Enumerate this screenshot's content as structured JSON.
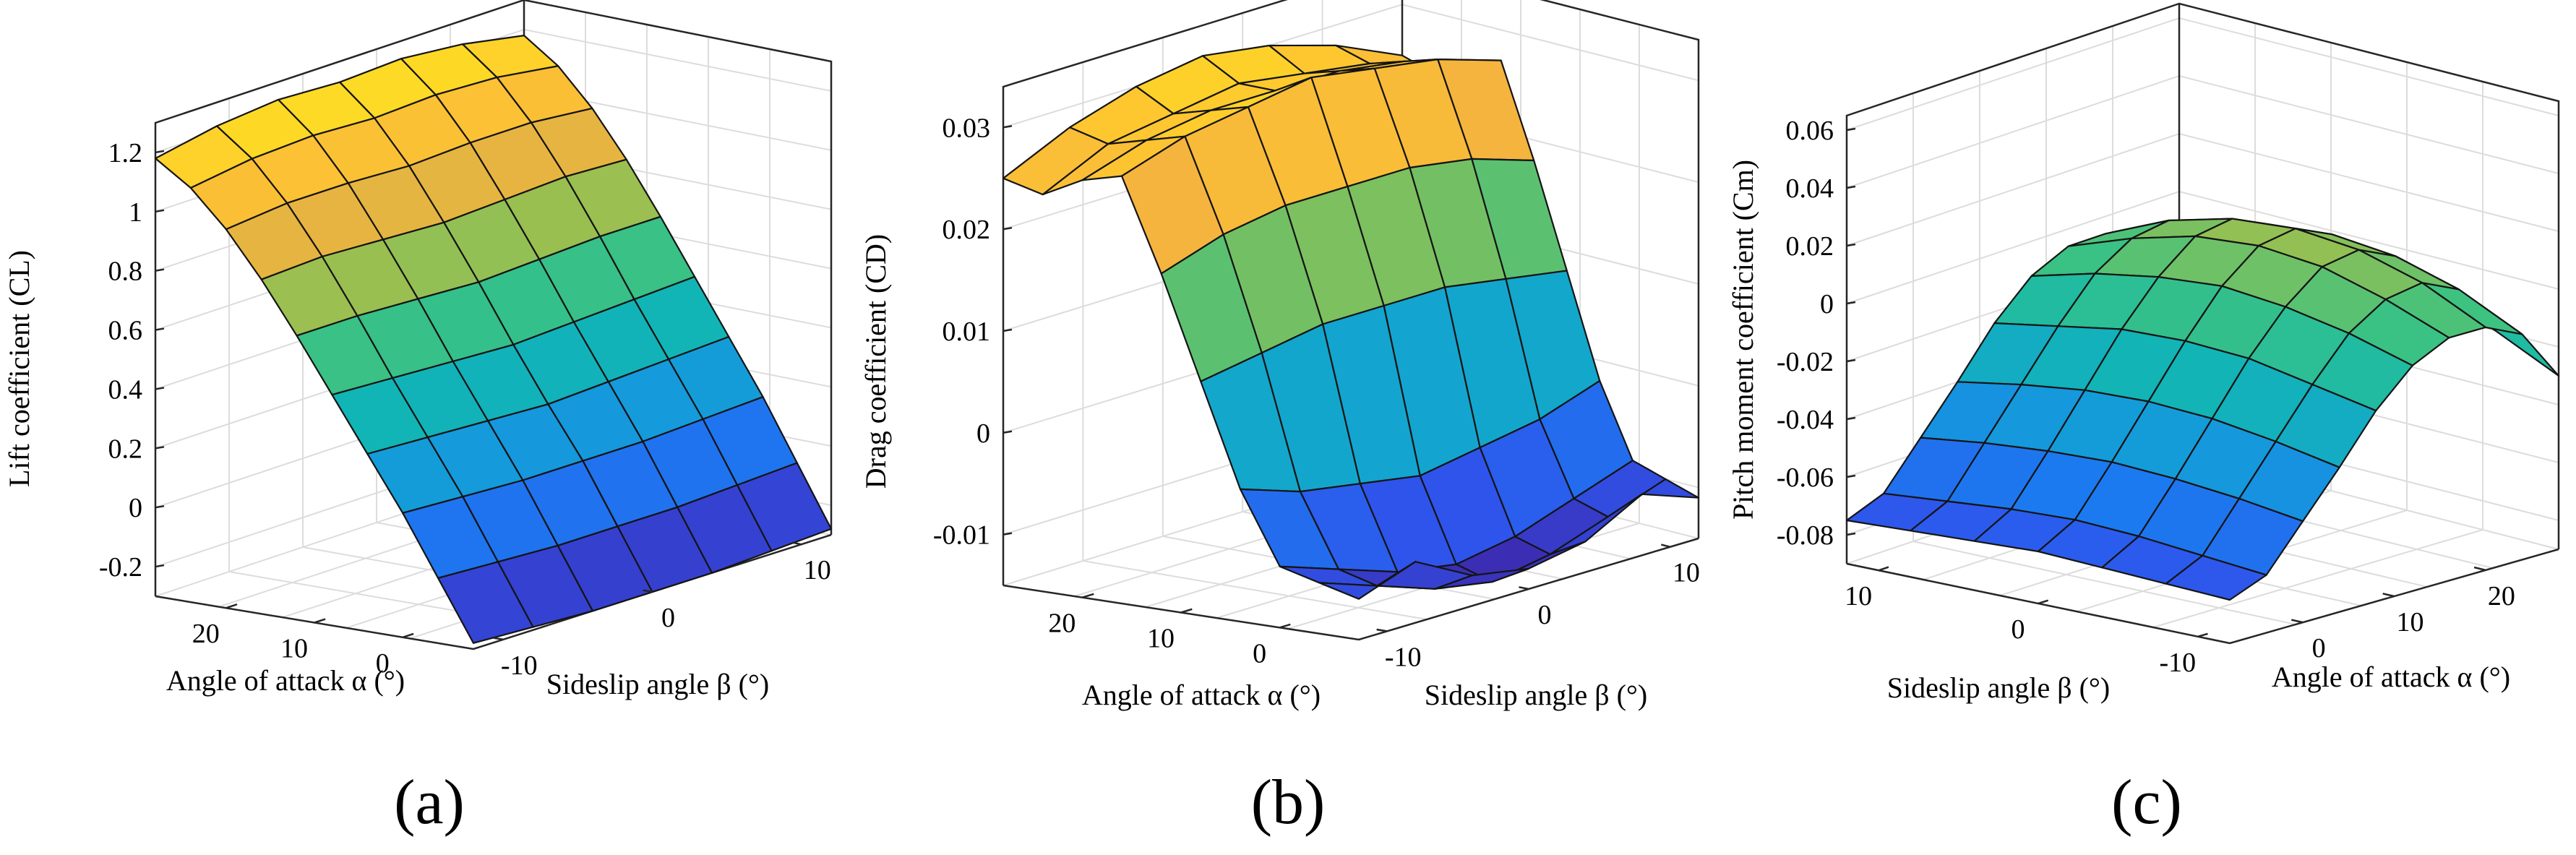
{
  "colors": {
    "colormap": [
      "#3e26a8",
      "#2f54ec",
      "#1a7ff0",
      "#13a1d5",
      "#12b8b0",
      "#3ec280",
      "#a6bf4a",
      "#f4b23f",
      "#ffc82f",
      "#f9fb15"
    ],
    "grid": "#dcdcdc",
    "axis": "#262626",
    "edge": "#141414"
  },
  "chart_data": [
    {
      "type": "surface",
      "panel": "(a)",
      "title": "",
      "zlabel": "Lift coefficient (CL)",
      "xlabel": "Angle of attack α (°)",
      "ylabel": "Sideslip angle β (°)",
      "alpha": [
        -8,
        -4,
        0,
        4,
        8,
        12,
        16,
        20,
        24,
        28
      ],
      "beta": [
        -12,
        -8,
        -4,
        0,
        4,
        8,
        12
      ],
      "alpha_ticks": [
        20,
        10,
        0
      ],
      "beta_ticks": [
        -10,
        0,
        10
      ],
      "z_ticks": [
        -0.2,
        0,
        0.2,
        0.4,
        0.6,
        0.8,
        1,
        1.2
      ],
      "z_tick_labels": [
        "-0.2",
        "0",
        "0.2",
        "0.4",
        "0.6",
        "0.8",
        "1",
        "1.2"
      ],
      "zlim": [
        -0.3,
        1.3
      ],
      "values": [
        [
          -0.28,
          -0.29,
          -0.3,
          -0.3,
          -0.3,
          -0.29,
          -0.28
        ],
        [
          -0.08,
          -0.09,
          -0.1,
          -0.1,
          -0.1,
          -0.09,
          -0.08
        ],
        [
          0.12,
          0.11,
          0.1,
          0.1,
          0.1,
          0.11,
          0.12
        ],
        [
          0.3,
          0.29,
          0.28,
          0.27,
          0.28,
          0.29,
          0.3
        ],
        [
          0.48,
          0.47,
          0.46,
          0.45,
          0.46,
          0.47,
          0.48
        ],
        [
          0.66,
          0.66,
          0.65,
          0.64,
          0.65,
          0.66,
          0.66
        ],
        [
          0.83,
          0.84,
          0.83,
          0.82,
          0.83,
          0.84,
          0.83
        ],
        [
          0.98,
          1.0,
          1.0,
          0.99,
          1.0,
          1.0,
          0.98
        ],
        [
          1.1,
          1.13,
          1.14,
          1.13,
          1.14,
          1.13,
          1.1
        ],
        [
          1.18,
          1.22,
          1.24,
          1.23,
          1.24,
          1.22,
          1.18
        ]
      ]
    },
    {
      "type": "surface",
      "panel": "(b)",
      "title": "",
      "zlabel": "Drag coefficient (CD)",
      "xlabel": "Angle of attack α (°)",
      "ylabel": "Sideslip angle β (°)",
      "alpha": [
        -8,
        -4,
        0,
        4,
        8,
        12,
        16,
        20,
        24,
        28
      ],
      "beta": [
        -12,
        -8,
        -4,
        0,
        4,
        8,
        12
      ],
      "alpha_ticks": [
        20,
        10,
        0
      ],
      "beta_ticks": [
        -10,
        0,
        10
      ],
      "z_ticks": [
        -0.01,
        0,
        0.01,
        0.02,
        0.03
      ],
      "z_tick_labels": [
        "-0.01",
        "0",
        "0.01",
        "0.02",
        "0.03"
      ],
      "zlim": [
        -0.015,
        0.034
      ],
      "values": [
        [
          -0.011,
          -0.009,
          -0.012,
          -0.013,
          -0.012,
          -0.009,
          -0.011
        ],
        [
          -0.01,
          -0.012,
          -0.014,
          -0.015,
          -0.014,
          -0.012,
          -0.01
        ],
        [
          -0.009,
          -0.011,
          -0.013,
          -0.014,
          -0.013,
          -0.011,
          -0.009
        ],
        [
          -0.002,
          -0.004,
          -0.005,
          -0.006,
          -0.005,
          -0.004,
          -0.002
        ],
        [
          0.008,
          0.009,
          0.01,
          0.01,
          0.01,
          0.009,
          0.008
        ],
        [
          0.018,
          0.02,
          0.021,
          0.021,
          0.021,
          0.02,
          0.018
        ],
        [
          0.027,
          0.029,
          0.03,
          0.031,
          0.03,
          0.029,
          0.027
        ],
        [
          0.026,
          0.028,
          0.029,
          0.029,
          0.029,
          0.028,
          0.026
        ],
        [
          0.024,
          0.027,
          0.028,
          0.029,
          0.028,
          0.027,
          0.024
        ],
        [
          0.025,
          0.028,
          0.03,
          0.031,
          0.03,
          0.028,
          0.025
        ]
      ]
    },
    {
      "type": "surface",
      "panel": "(c)",
      "title": "",
      "zlabel": "Pitch moment coefficient (Cm)",
      "xlabel": "Angle of attack α (°)",
      "ylabel": "Sideslip angle β (°)",
      "alpha": [
        -8,
        -4,
        0,
        4,
        8,
        12,
        16,
        20,
        24,
        28
      ],
      "beta": [
        -12,
        -8,
        -4,
        0,
        4,
        8,
        12
      ],
      "alpha_ticks": [
        0,
        10,
        20
      ],
      "beta_ticks": [
        10,
        0,
        -10
      ],
      "z_ticks": [
        -0.08,
        -0.06,
        -0.04,
        -0.02,
        0,
        0.02,
        0.04,
        0.06
      ],
      "z_tick_labels": [
        "-0.08",
        "-0.06",
        "-0.04",
        "-0.02",
        "0",
        "0.02",
        "0.04",
        "0.06"
      ],
      "zlim": [
        -0.09,
        0.065
      ],
      "values": [
        [
          -0.075,
          -0.074,
          -0.073,
          -0.072,
          -0.073,
          -0.074,
          -0.075
        ],
        [
          -0.07,
          -0.068,
          -0.066,
          -0.065,
          -0.066,
          -0.068,
          -0.07
        ],
        [
          -0.055,
          -0.052,
          -0.05,
          -0.049,
          -0.05,
          -0.052,
          -0.055
        ],
        [
          -0.04,
          -0.036,
          -0.033,
          -0.032,
          -0.033,
          -0.036,
          -0.04
        ],
        [
          -0.024,
          -0.02,
          -0.016,
          -0.015,
          -0.016,
          -0.02,
          -0.024
        ],
        [
          -0.012,
          -0.006,
          -0.002,
          0.0,
          -0.002,
          -0.006,
          -0.012
        ],
        [
          -0.006,
          0.002,
          0.008,
          0.01,
          0.008,
          0.002,
          -0.006
        ],
        [
          -0.006,
          0.004,
          0.01,
          0.012,
          0.01,
          0.004,
          -0.006
        ],
        [
          -0.012,
          -0.002,
          0.004,
          0.006,
          0.004,
          -0.002,
          -0.012
        ],
        [
          -0.03,
          -0.02,
          -0.012,
          -0.01,
          -0.012,
          -0.02,
          -0.03
        ]
      ]
    }
  ]
}
